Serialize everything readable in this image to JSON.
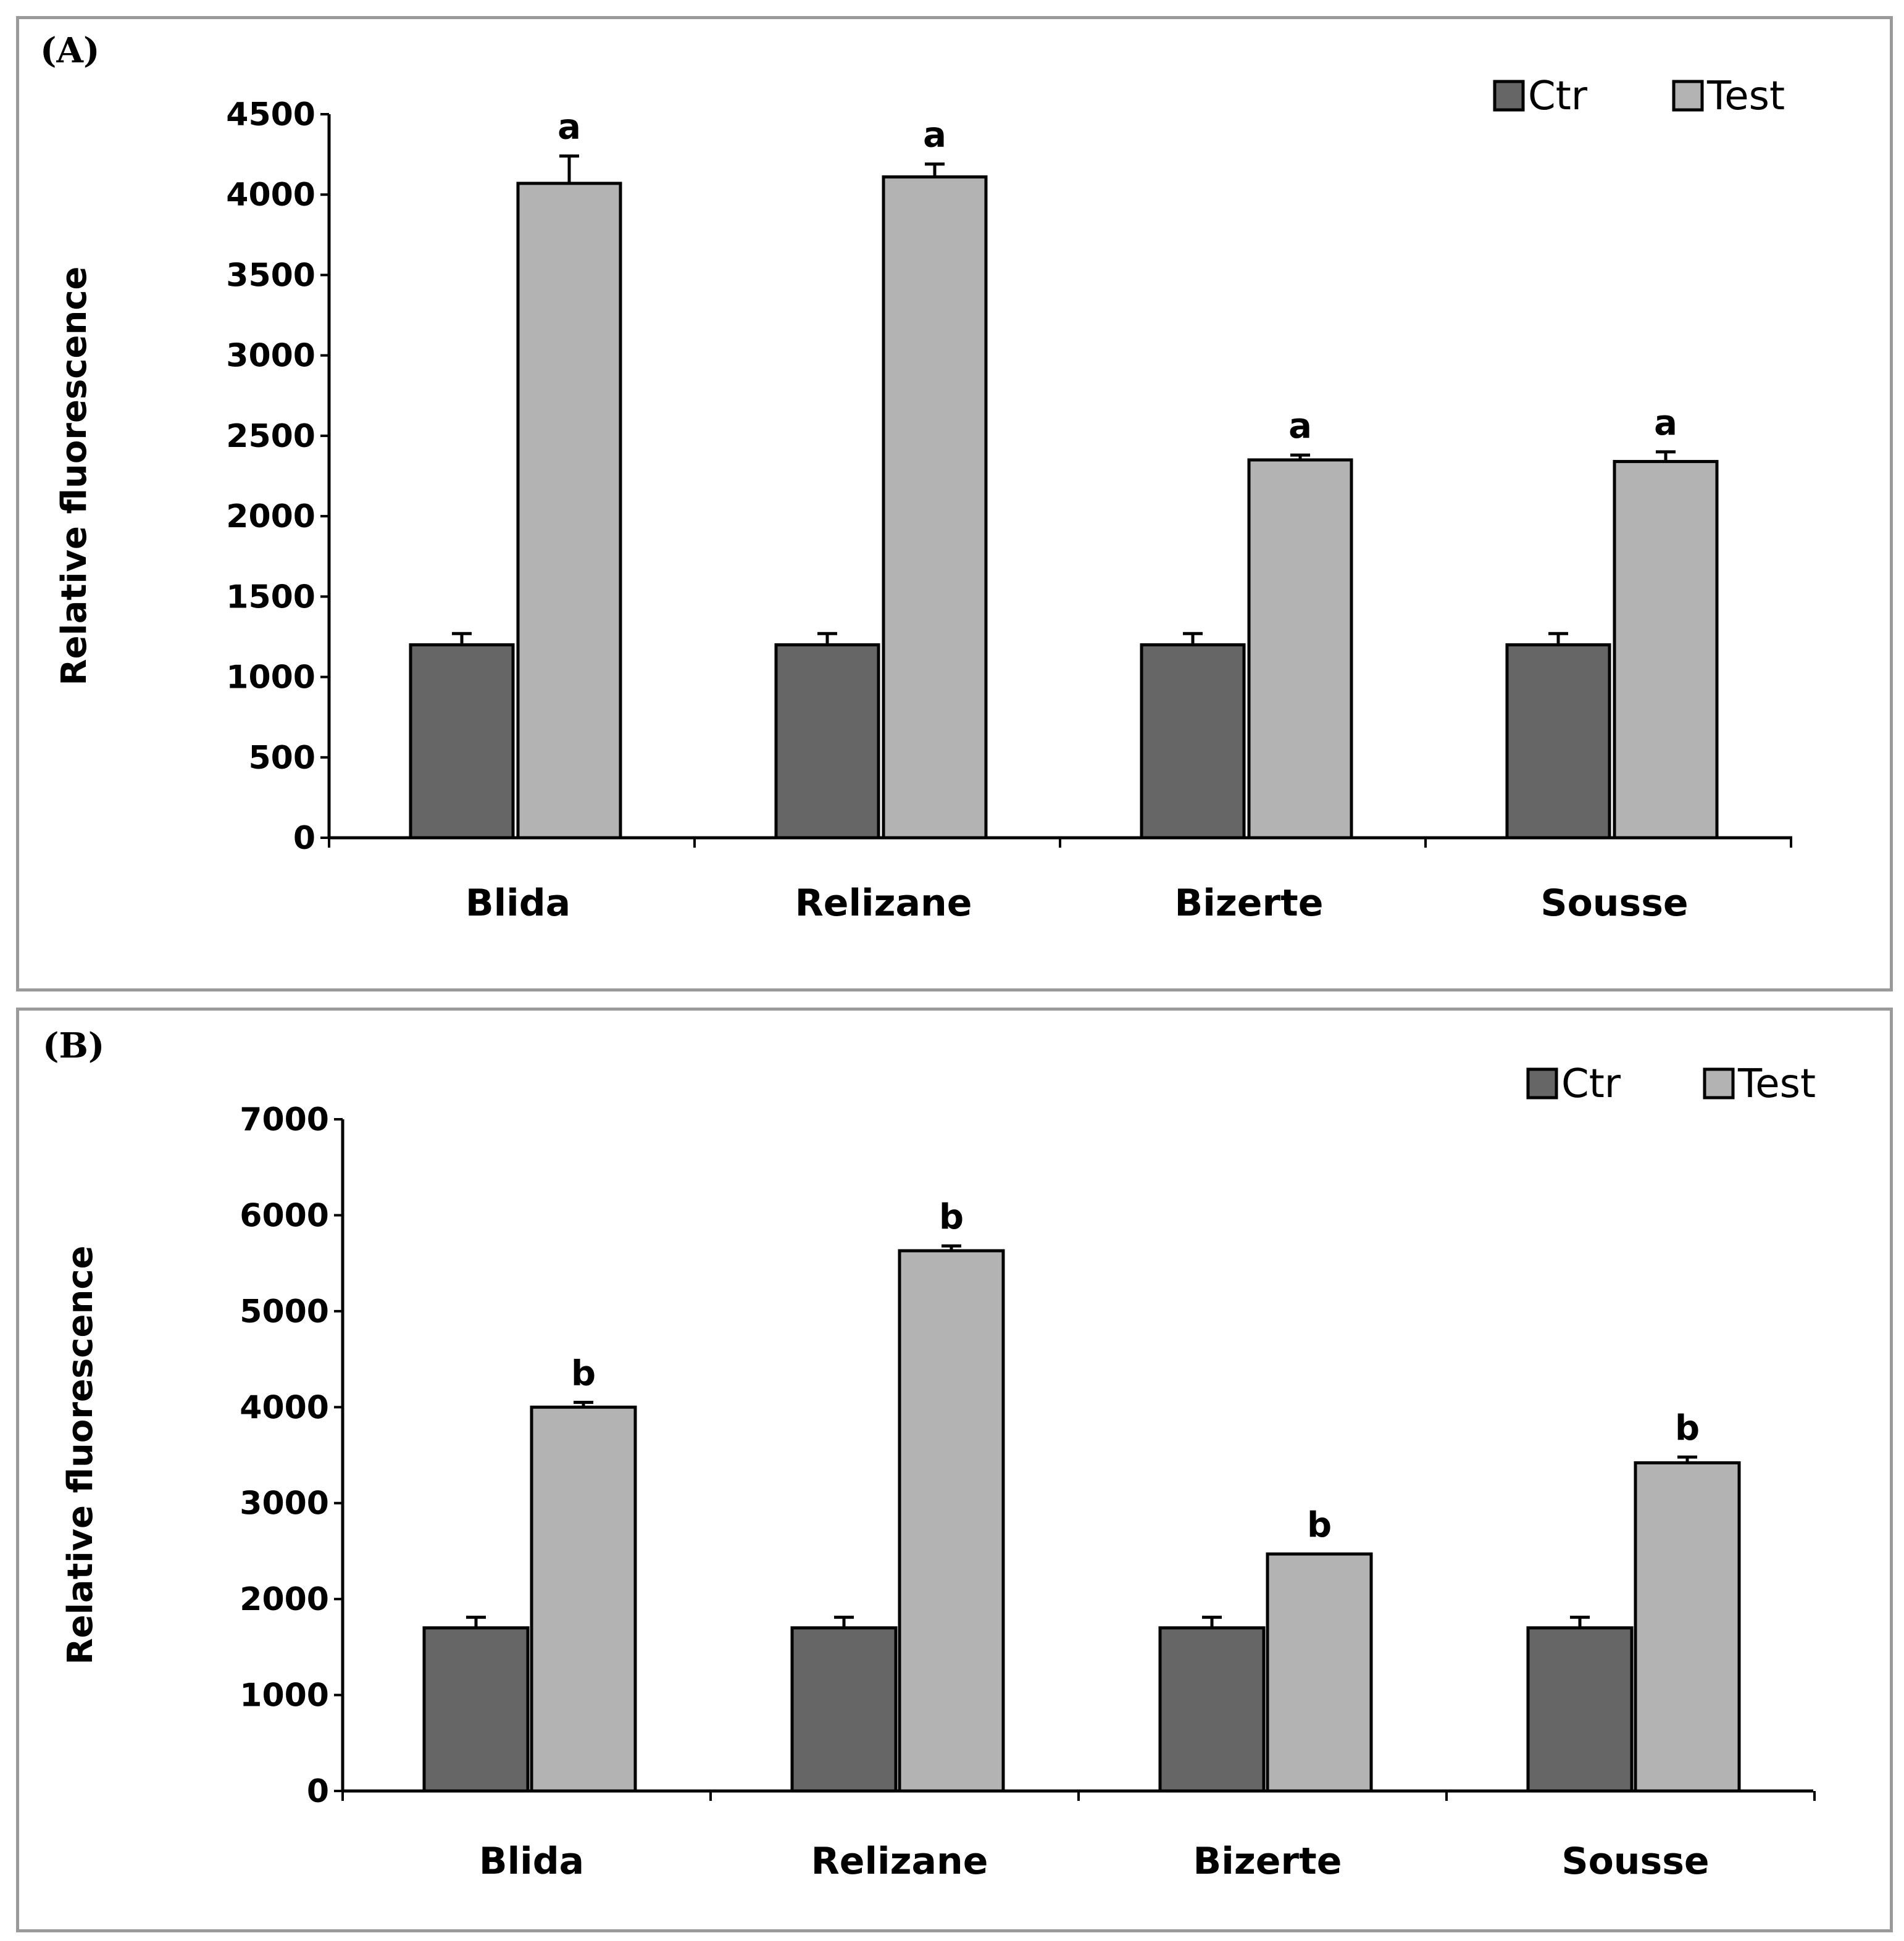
{
  "colors": {
    "ctr": "#666666",
    "test": "#b3b3b3",
    "frame": "#9a9a9a"
  },
  "chart_data": [
    {
      "panel": "(A)",
      "type": "bar",
      "ylabel": "Relative fluorescence",
      "xlabel": "",
      "ylim": [
        0,
        4500
      ],
      "yticks": [
        0,
        500,
        1000,
        1500,
        2000,
        2500,
        3000,
        3500,
        4000,
        4500
      ],
      "categories": [
        "Blida",
        "Relizane",
        "Bizerte",
        "Sousse"
      ],
      "legend": [
        "Ctr",
        "Test"
      ],
      "legend_position": "top-right",
      "series": [
        {
          "name": "Ctr",
          "values": [
            1200,
            1200,
            1200,
            1200
          ],
          "errors": [
            70,
            70,
            70,
            70
          ]
        },
        {
          "name": "Test",
          "values": [
            4070,
            4110,
            2350,
            2340
          ],
          "errors": [
            170,
            80,
            30,
            60
          ]
        }
      ],
      "annotations": [
        "a",
        "a",
        "a",
        "a"
      ]
    },
    {
      "panel": "(B)",
      "type": "bar",
      "ylabel": "Relative fluorescence",
      "xlabel": "",
      "ylim": [
        0,
        7000
      ],
      "yticks": [
        0,
        1000,
        2000,
        3000,
        4000,
        5000,
        6000,
        7000
      ],
      "categories": [
        "Blida",
        "Relizane",
        "Bizerte",
        "Sousse"
      ],
      "legend": [
        "Ctr",
        "Test"
      ],
      "legend_position": "top-right",
      "series": [
        {
          "name": "Ctr",
          "values": [
            1700,
            1700,
            1700,
            1700
          ],
          "errors": [
            110,
            110,
            110,
            110
          ]
        },
        {
          "name": "Test",
          "values": [
            4000,
            5630,
            2470,
            3420
          ],
          "errors": [
            50,
            50,
            0,
            60
          ]
        }
      ],
      "annotations": [
        "b",
        "b",
        "b",
        "b"
      ]
    }
  ]
}
